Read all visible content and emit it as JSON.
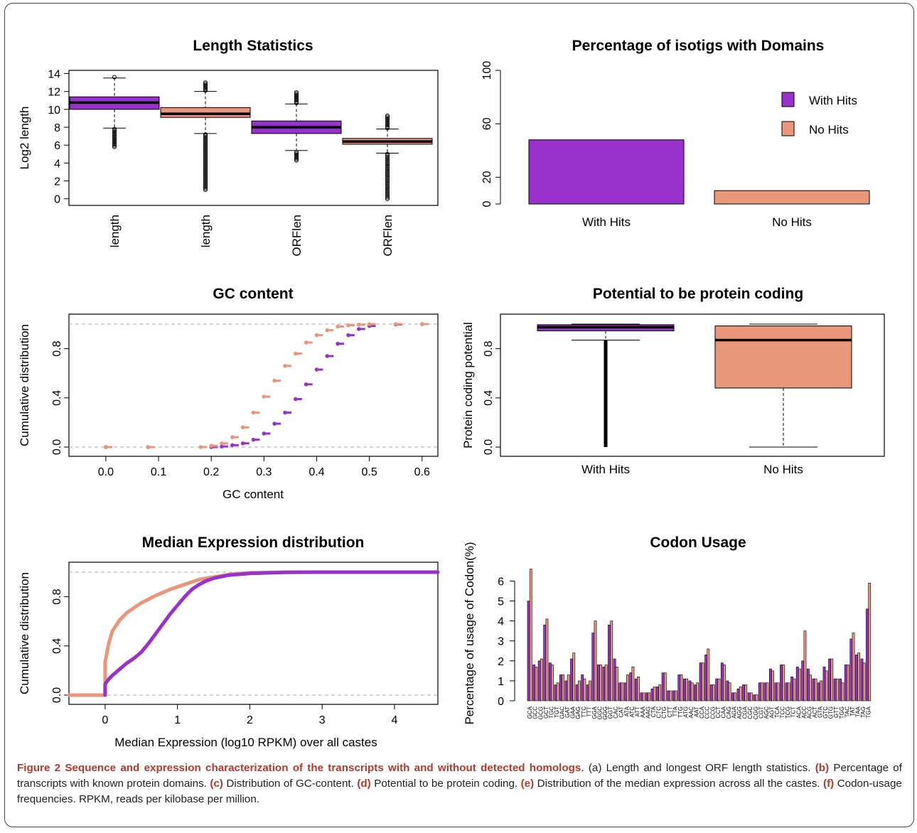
{
  "colors": {
    "with_hits": "#9932CC",
    "no_hits": "#E9967A",
    "outline": "#000000",
    "ref_line": "#aaaaaa"
  },
  "chart_data": [
    {
      "type": "boxplot",
      "title": "Length Statistics",
      "ylabel": "Log2 length",
      "categories": [
        "length",
        "length",
        "ORFlen",
        "ORFlen"
      ],
      "yticks": [
        0,
        2,
        4,
        6,
        8,
        10,
        12,
        14
      ],
      "ylim": [
        -0.5,
        14.2
      ],
      "boxes": [
        {
          "q1": 10.0,
          "median": 10.75,
          "q3": 11.4,
          "whisker_low": 7.9,
          "whisker_high": 13.5,
          "outliers_low": [
            5.8,
            7.8
          ],
          "outliers_high": [
            13.6
          ],
          "series": "With Hits"
        },
        {
          "q1": 9.1,
          "median": 9.5,
          "q3": 10.2,
          "whisker_low": 7.3,
          "whisker_high": 12.0,
          "outliers_low": [
            1.0,
            7.2
          ],
          "outliers_high": [
            12.1,
            13.0
          ],
          "series": "No Hits"
        },
        {
          "q1": 7.3,
          "median": 8.0,
          "q3": 8.7,
          "whisker_low": 5.4,
          "whisker_high": 10.6,
          "outliers_low": [
            4.3,
            5.2
          ],
          "outliers_high": [
            10.7,
            11.9
          ],
          "series": "With Hits"
        },
        {
          "q1": 6.1,
          "median": 6.4,
          "q3": 6.75,
          "whisker_low": 5.1,
          "whisker_high": 7.8,
          "outliers_low": [
            0.0,
            5.0
          ],
          "outliers_high": [
            7.9,
            9.3
          ],
          "series": "No Hits"
        }
      ]
    },
    {
      "type": "bar",
      "title": "Percentage of isotigs with Domains",
      "categories": [
        "With Hits",
        "No Hits"
      ],
      "values": [
        48,
        10
      ],
      "yticks": [
        0,
        20,
        60,
        100
      ],
      "ylim": [
        0,
        100
      ],
      "legend": {
        "position": "top-right",
        "entries": [
          "With Hits",
          "No Hits"
        ]
      }
    },
    {
      "type": "scatter",
      "title": "GC content",
      "xlabel": "GC content",
      "ylabel": "Cumulative distribution",
      "xticks": [
        "0.0",
        "0.1",
        "0.2",
        "0.3",
        "0.4",
        "0.5",
        "0.6"
      ],
      "yticks": [
        "0.0",
        "0.4",
        "0.8"
      ],
      "xlim": [
        -0.07,
        0.63
      ],
      "ylim": [
        0,
        1
      ],
      "series": [
        {
          "color": "with_hits",
          "x": [
            0.0,
            0.08,
            0.2,
            0.22,
            0.24,
            0.26,
            0.28,
            0.3,
            0.32,
            0.34,
            0.36,
            0.38,
            0.4,
            0.42,
            0.44,
            0.46,
            0.48,
            0.5,
            0.55,
            0.6
          ],
          "y": [
            0.0,
            0.0,
            0.0,
            0.005,
            0.015,
            0.03,
            0.06,
            0.11,
            0.19,
            0.28,
            0.39,
            0.51,
            0.63,
            0.74,
            0.84,
            0.91,
            0.96,
            0.985,
            0.997,
            1.0
          ]
        },
        {
          "color": "no_hits",
          "x": [
            0.0,
            0.08,
            0.18,
            0.2,
            0.22,
            0.24,
            0.26,
            0.28,
            0.3,
            0.32,
            0.34,
            0.36,
            0.38,
            0.4,
            0.42,
            0.44,
            0.46,
            0.48,
            0.5,
            0.55,
            0.6
          ],
          "y": [
            0.0,
            0.0,
            0.0,
            0.01,
            0.03,
            0.08,
            0.16,
            0.28,
            0.41,
            0.54,
            0.66,
            0.76,
            0.85,
            0.91,
            0.95,
            0.98,
            0.99,
            0.996,
            1.0,
            1.0,
            1.0
          ]
        }
      ]
    },
    {
      "type": "boxplot",
      "title": "Potential to be protein coding",
      "ylabel": "Protein coding potential",
      "categories": [
        "With Hits",
        "No Hits"
      ],
      "yticks": [
        "0.0",
        "0.4",
        "0.8"
      ],
      "ylim": [
        0,
        1
      ],
      "boxes": [
        {
          "q1": 0.945,
          "median": 0.975,
          "q3": 0.995,
          "whisker_low": 0.87,
          "whisker_high": 1.0,
          "outliers_low": [
            0.0,
            0.87
          ],
          "series": "With Hits"
        },
        {
          "q1": 0.48,
          "median": 0.87,
          "q3": 0.985,
          "whisker_low": 0.0,
          "whisker_high": 1.0,
          "outliers_low": [],
          "series": "No Hits"
        }
      ]
    },
    {
      "type": "line",
      "title": "Median Expression distribution",
      "xlabel": "Median Expression (log10 RPKM) over all castes",
      "ylabel": "Cumulative distribution",
      "xticks": [
        "0",
        "1",
        "2",
        "3",
        "4"
      ],
      "yticks": [
        "0.0",
        "0.4",
        "0.8"
      ],
      "xlim": [
        -0.5,
        4.6
      ],
      "ylim": [
        0,
        1
      ],
      "series": [
        {
          "color": "no_hits",
          "x": [
            -0.5,
            0.0,
            0.0,
            0.05,
            0.1,
            0.2,
            0.3,
            0.4,
            0.5,
            0.7,
            0.9,
            1.1,
            1.3,
            1.5,
            1.7,
            2.0,
            2.5,
            3.0,
            4.0
          ],
          "y": [
            0.0,
            0.0,
            0.27,
            0.42,
            0.52,
            0.61,
            0.67,
            0.71,
            0.75,
            0.81,
            0.86,
            0.9,
            0.94,
            0.96,
            0.98,
            0.995,
            1.0,
            1.0,
            1.0
          ]
        },
        {
          "color": "with_hits",
          "x": [
            0.0,
            0.0,
            0.05,
            0.1,
            0.2,
            0.3,
            0.4,
            0.5,
            0.6,
            0.7,
            0.8,
            0.9,
            1.0,
            1.1,
            1.2,
            1.3,
            1.4,
            1.5,
            1.7,
            2.0,
            2.5,
            3.0,
            4.0,
            4.6
          ],
          "y": [
            0.0,
            0.09,
            0.13,
            0.16,
            0.21,
            0.26,
            0.3,
            0.35,
            0.42,
            0.5,
            0.58,
            0.66,
            0.73,
            0.8,
            0.86,
            0.9,
            0.93,
            0.95,
            0.975,
            0.99,
            0.998,
            1.0,
            1.0,
            1.0
          ]
        }
      ]
    },
    {
      "type": "bar",
      "title": "Codon Usage",
      "ylabel": "Percentage of usage of Codon(%)",
      "yticks": [
        0,
        1,
        2,
        3,
        4,
        5,
        6
      ],
      "ylim": [
        0,
        6.8
      ],
      "categories": [
        "GCA",
        "GCC",
        "GCG",
        "GCT",
        "TGC",
        "TGT",
        "GAC",
        "GAT",
        "GAA",
        "GAG",
        "TTC",
        "TTT",
        "GGA",
        "GGC",
        "GGG",
        "GGT",
        "CAC",
        "CAT",
        "ATA",
        "ATC",
        "ATT",
        "AAA",
        "AAG",
        "CTA",
        "CTC",
        "CTG",
        "CTT",
        "TTA",
        "TTG",
        "ATG",
        "AAC",
        "AAT",
        "CCA",
        "CCC",
        "CCG",
        "CCT",
        "CAA",
        "CAG",
        "AGA",
        "AGG",
        "CGA",
        "CGC",
        "CGG",
        "CGT",
        "AGC",
        "AGT",
        "TCA",
        "TCC",
        "TCG",
        "TCT",
        "ACA",
        "ACC",
        "ACG",
        "ACT",
        "GTA",
        "GTC",
        "GTG",
        "GTT",
        "TGG",
        "TAC",
        "TAT",
        "TAA",
        "TAG",
        "TGA"
      ],
      "series": [
        {
          "name": "With Hits",
          "values": [
            5.0,
            1.8,
            2.0,
            3.8,
            1.9,
            0.8,
            1.3,
            1.0,
            2.1,
            0.8,
            1.3,
            0.8,
            3.4,
            1.8,
            1.7,
            3.8,
            2.1,
            0.9,
            0.9,
            1.4,
            1.1,
            0.4,
            0.4,
            0.6,
            0.7,
            1.4,
            0.5,
            0.5,
            1.3,
            1.1,
            1.0,
            0.8,
            1.9,
            2.3,
            0.8,
            1.1,
            1.9,
            1.0,
            0.4,
            0.6,
            0.8,
            0.4,
            0.3,
            0.9,
            0.9,
            1.6,
            0.9,
            1.8,
            0.9,
            1.2,
            1.7,
            2.0,
            1.6,
            1.1,
            0.9,
            1.7,
            2.1,
            1.1,
            1.1,
            1.8,
            3.1,
            2.3,
            2.1,
            4.6
          ]
        },
        {
          "name": "No Hits",
          "values": [
            6.6,
            1.7,
            2.1,
            4.1,
            1.8,
            0.9,
            1.3,
            1.3,
            2.4,
            1.0,
            1.1,
            1.0,
            4.0,
            1.8,
            1.8,
            4.0,
            1.7,
            0.9,
            1.3,
            1.7,
            1.2,
            0.4,
            0.4,
            0.7,
            0.8,
            1.4,
            0.5,
            0.5,
            1.3,
            1.1,
            0.9,
            0.9,
            1.9,
            2.6,
            0.8,
            1.1,
            1.8,
            0.9,
            0.4,
            0.7,
            0.8,
            0.4,
            0.3,
            0.9,
            0.9,
            1.5,
            0.9,
            1.8,
            0.9,
            1.1,
            1.6,
            3.5,
            1.3,
            1.1,
            1.0,
            1.5,
            2.1,
            1.1,
            0.9,
            1.8,
            3.4,
            2.4,
            1.9,
            5.9
          ]
        }
      ]
    }
  ],
  "caption": {
    "figure_label": "Figure 2",
    "bold_title": "Sequence and expression characterization of the transcripts with and without detected homologs",
    "a": "(a) Length and longest ORF length statistics.",
    "b_label": "(b)",
    "b": "Percentage of transcripts with known protein domains.",
    "c_label": "(c)",
    "c": "Distribution of GC-content.",
    "d_label": "(d)",
    "d": "Potential to be protein coding.",
    "e_label": "(e)",
    "e": "Distribution of the median expression across all the castes.",
    "f_label": "(f)",
    "f": "Codon-usage frequencies. RPKM, reads per kilobase per million."
  }
}
